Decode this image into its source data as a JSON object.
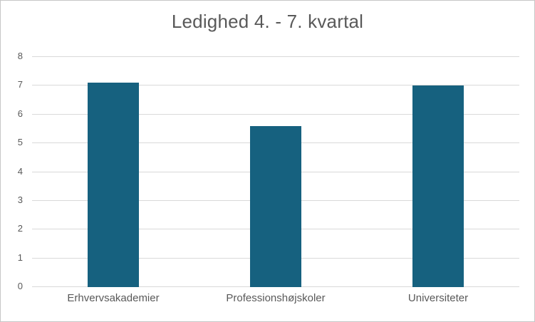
{
  "chart_data": {
    "type": "bar",
    "title": "Ledighed 4. - 7. kvartal",
    "categories": [
      "Erhvervsakademier",
      "Professionshøjskoler",
      "Universiteter"
    ],
    "values": [
      7.1,
      5.6,
      7.0
    ],
    "xlabel": "",
    "ylabel": "",
    "ylim": [
      0,
      8
    ],
    "yticks": [
      0,
      1,
      2,
      3,
      4,
      5,
      6,
      7,
      8
    ],
    "grid": true,
    "legend": false
  },
  "colors": {
    "bar": "#16617f",
    "gridline": "#d9d9d9",
    "axis_text": "#595959",
    "title_text": "#595959",
    "border": "#c6c6c6",
    "background": "#ffffff"
  }
}
